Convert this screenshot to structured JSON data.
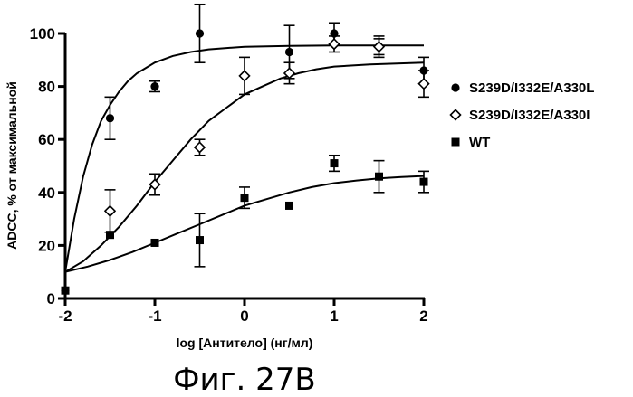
{
  "chart_data": {
    "type": "scatter",
    "caption": "Фиг. 27В",
    "xlabel": "log [Антитело] (нг/мл)",
    "ylabel": "ADCC, % от максимальной",
    "xlim": [
      -2,
      2
    ],
    "ylim": [
      0,
      100
    ],
    "x_ticks": [
      -2,
      -1,
      0,
      1,
      2
    ],
    "y_ticks": [
      0,
      20,
      40,
      60,
      80,
      100
    ],
    "x_tick_labels": [
      "-2",
      "-1",
      "0",
      "1",
      "2"
    ],
    "y_tick_labels": [
      "0",
      "20",
      "40",
      "60",
      "80",
      "100"
    ],
    "grid": false,
    "legend_position": "right",
    "series": [
      {
        "name": "S239D/I332E/A330L",
        "marker": "filled-circle",
        "points": [
          {
            "x": -2,
            "y": 3,
            "err": 0
          },
          {
            "x": -1.5,
            "y": 68,
            "err": 8
          },
          {
            "x": -1,
            "y": 80,
            "err": 2
          },
          {
            "x": -0.5,
            "y": 100,
            "err": 11
          },
          {
            "x": 0.5,
            "y": 93,
            "err": 10
          },
          {
            "x": 1,
            "y": 100,
            "err": 4
          },
          {
            "x": 1.5,
            "y": 95,
            "err": 4
          },
          {
            "x": 2,
            "y": 86,
            "err": 5
          }
        ],
        "fit": [
          [
            -2,
            10
          ],
          [
            -1.9,
            30
          ],
          [
            -1.8,
            46
          ],
          [
            -1.7,
            58
          ],
          [
            -1.6,
            67
          ],
          [
            -1.5,
            73
          ],
          [
            -1.4,
            78
          ],
          [
            -1.3,
            82
          ],
          [
            -1.2,
            85
          ],
          [
            -1.1,
            87
          ],
          [
            -1.0,
            89
          ],
          [
            -0.8,
            91.5
          ],
          [
            -0.6,
            93
          ],
          [
            -0.4,
            94
          ],
          [
            -0.2,
            94.5
          ],
          [
            0,
            95
          ],
          [
            0.5,
            95.3
          ],
          [
            1,
            95.5
          ],
          [
            1.5,
            95.5
          ],
          [
            2,
            95.5
          ]
        ]
      },
      {
        "name": "S239D/I332E/A330I",
        "marker": "open-diamond",
        "points": [
          {
            "x": -1.5,
            "y": 33,
            "err": 8
          },
          {
            "x": -1,
            "y": 43,
            "err": 4
          },
          {
            "x": -0.5,
            "y": 57,
            "err": 3
          },
          {
            "x": 0,
            "y": 84,
            "err": 7
          },
          {
            "x": 0.5,
            "y": 85,
            "err": 4
          },
          {
            "x": 1,
            "y": 96,
            "err": 3
          },
          {
            "x": 1.5,
            "y": 95,
            "err": 3
          },
          {
            "x": 2,
            "y": 81,
            "err": 5
          }
        ],
        "fit": [
          [
            -2,
            10
          ],
          [
            -1.8,
            14
          ],
          [
            -1.6,
            20
          ],
          [
            -1.4,
            27
          ],
          [
            -1.2,
            35
          ],
          [
            -1.0,
            44
          ],
          [
            -0.8,
            52
          ],
          [
            -0.6,
            60
          ],
          [
            -0.4,
            67
          ],
          [
            -0.2,
            72
          ],
          [
            0,
            77
          ],
          [
            0.2,
            80
          ],
          [
            0.4,
            83
          ],
          [
            0.6,
            85
          ],
          [
            0.8,
            86.5
          ],
          [
            1.0,
            87.5
          ],
          [
            1.4,
            88.3
          ],
          [
            2,
            89
          ]
        ]
      },
      {
        "name": "WT",
        "marker": "filled-square",
        "points": [
          {
            "x": -2,
            "y": 3,
            "err": 0
          },
          {
            "x": -1.5,
            "y": 24,
            "err": 0
          },
          {
            "x": -1,
            "y": 21,
            "err": 0
          },
          {
            "x": -0.5,
            "y": 22,
            "err": 10
          },
          {
            "x": 0,
            "y": 38,
            "err": 4
          },
          {
            "x": 0.5,
            "y": 35,
            "err": 0
          },
          {
            "x": 1,
            "y": 51,
            "err": 3
          },
          {
            "x": 1.5,
            "y": 46,
            "err": 6
          },
          {
            "x": 2,
            "y": 44,
            "err": 4
          }
        ],
        "fit": [
          [
            -2,
            10
          ],
          [
            -1.75,
            12
          ],
          [
            -1.5,
            14.5
          ],
          [
            -1.25,
            17.5
          ],
          [
            -1.0,
            21
          ],
          [
            -0.75,
            24.5
          ],
          [
            -0.5,
            28
          ],
          [
            -0.25,
            31.5
          ],
          [
            0,
            35
          ],
          [
            0.25,
            37.5
          ],
          [
            0.5,
            40
          ],
          [
            0.75,
            42
          ],
          [
            1.0,
            43.5
          ],
          [
            1.25,
            44.5
          ],
          [
            1.5,
            45.3
          ],
          [
            1.75,
            45.8
          ],
          [
            2,
            46.2
          ]
        ]
      }
    ]
  }
}
